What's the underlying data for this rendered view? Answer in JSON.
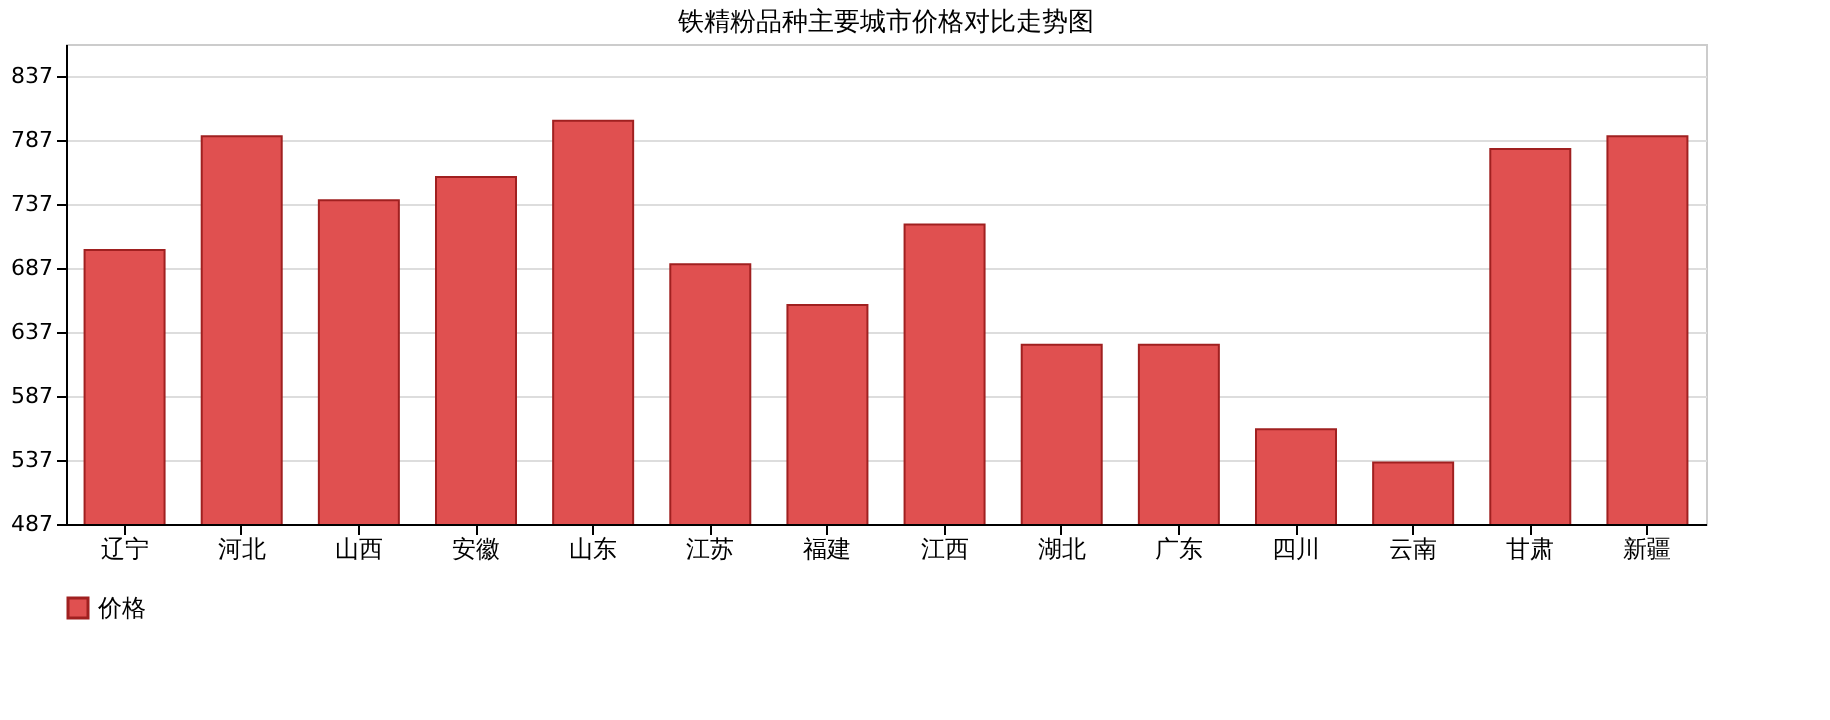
{
  "chart_data": {
    "type": "bar",
    "title": "铁精粉品种主要城市价格对比走势图",
    "categories": [
      "辽宁",
      "河北",
      "山西",
      "安徽",
      "山东",
      "江苏",
      "福建",
      "江西",
      "湖北",
      "广东",
      "四川",
      "云南",
      "甘肃",
      "新疆"
    ],
    "series": [
      {
        "name": "价格",
        "color": "#e05050",
        "values": [
          701,
          790,
          740,
          758,
          802,
          690,
          658,
          721,
          627,
          627,
          561,
          535,
          780,
          790
        ]
      }
    ],
    "ylim": [
      487,
      862
    ],
    "yticks": [
      487,
      537,
      587,
      637,
      687,
      737,
      787,
      837
    ],
    "grid": "y",
    "legend": "bottom"
  }
}
